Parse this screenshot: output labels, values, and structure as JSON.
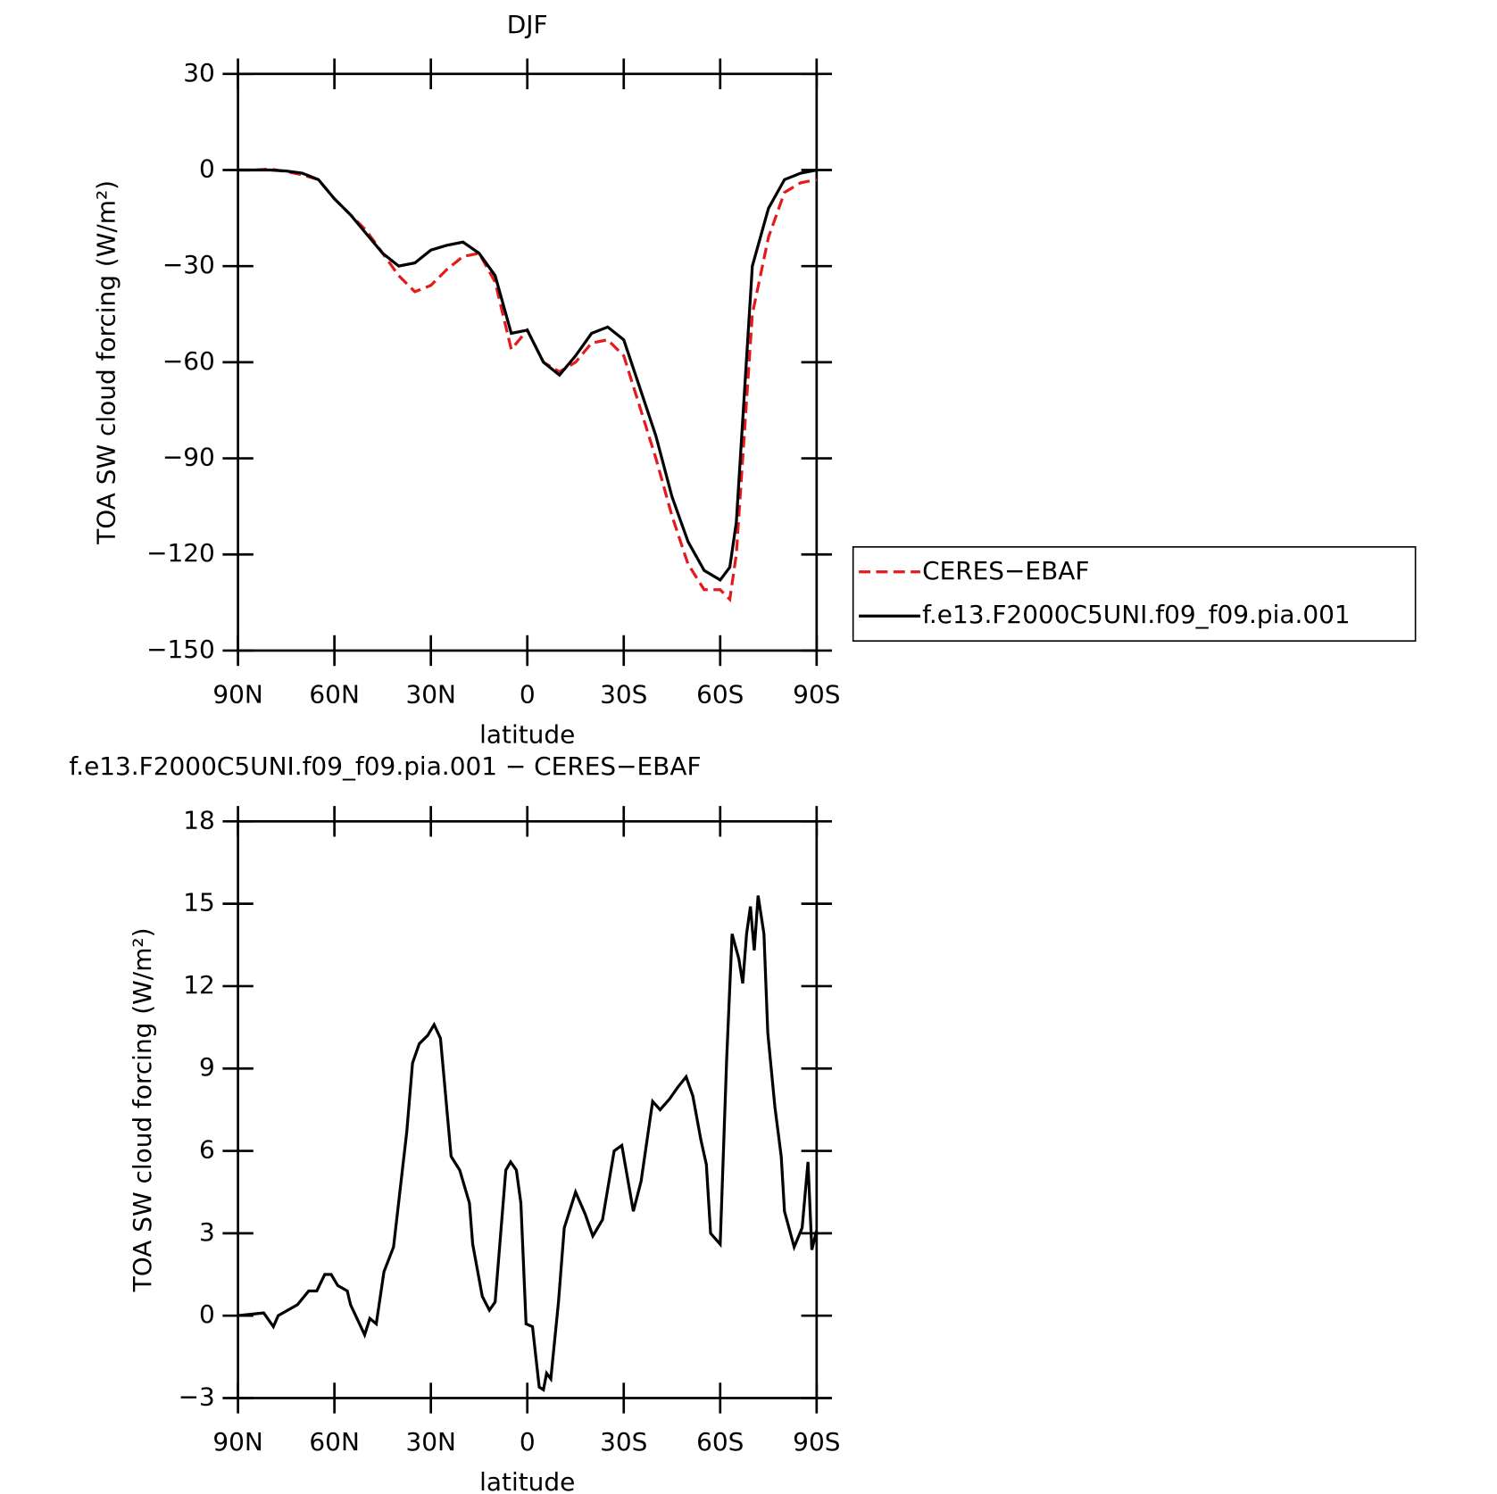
{
  "chart_data": [
    {
      "type": "line",
      "title": "DJF",
      "x_label": "latitude",
      "y_label": "TOA SW cloud forcing (W/m²)",
      "x": [
        90,
        85,
        80,
        75,
        70,
        65,
        60,
        55,
        50,
        45,
        40,
        35,
        30,
        25,
        20,
        15,
        10,
        5,
        0,
        -5,
        -10,
        -15,
        -20,
        -25,
        -30,
        -35,
        -40,
        -45,
        -50,
        -55,
        -60,
        -63,
        -65,
        -70,
        -75,
        -80,
        -85,
        -90
      ],
      "series": [
        {
          "name": "CERES−EBAF",
          "color": "#e41a1c",
          "dash": true,
          "values": [
            0,
            0,
            0.3,
            -0.5,
            -1.5,
            -3,
            -9,
            -14,
            -19,
            -26,
            -33,
            -38,
            -36,
            -31,
            -27,
            -26,
            -35,
            -56,
            -50,
            -60,
            -63,
            -60,
            -54,
            -53,
            -58,
            -74,
            -90,
            -108,
            -123,
            -131,
            -131,
            -134,
            -120,
            -45,
            -21,
            -7,
            -4,
            -3
          ]
        },
        {
          "name": "f.e13.F2000C5UNI.f09_f09.pia.001",
          "color": "#000000",
          "dash": false,
          "values": [
            0,
            0,
            0,
            -0.3,
            -1,
            -3,
            -9,
            -14,
            -20,
            -26,
            -30,
            -29,
            -25,
            -23.5,
            -22.5,
            -26,
            -33,
            -51,
            -50,
            -60,
            -64,
            -58,
            -51,
            -49,
            -53,
            -68,
            -83,
            -102,
            -116,
            -125,
            -128,
            -124,
            -110,
            -30,
            -12,
            -3,
            -1,
            0
          ]
        }
      ],
      "xlim": [
        90,
        -90
      ],
      "xticks": [
        {
          "value": 90,
          "label": "90N"
        },
        {
          "value": 60,
          "label": "60N"
        },
        {
          "value": 30,
          "label": "30N"
        },
        0,
        {
          "value": -30,
          "label": "30S"
        },
        {
          "value": -60,
          "label": "60S"
        },
        {
          "value": -90,
          "label": "90S"
        }
      ],
      "ylim": [
        -150,
        30
      ],
      "yticks": [
        {
          "value": -150,
          "label": "−150"
        },
        {
          "value": -120,
          "label": "−120"
        },
        {
          "value": -90,
          "label": "−90"
        },
        {
          "value": -60,
          "label": "−60"
        },
        {
          "value": -30,
          "label": "−30"
        },
        0,
        30
      ],
      "legend": "right"
    },
    {
      "type": "line",
      "title": "f.e13.F2000C5UNI.f09_f09.pia.001 − CERES−EBAF",
      "x_label": "latitude",
      "y_label": "TOA SW cloud forcing (W/m²)",
      "x": [
        90,
        82,
        79,
        77.5,
        71.5,
        68,
        65.5,
        63,
        61,
        59,
        56,
        55,
        50.6,
        49,
        47,
        44.6,
        41.6,
        37.5,
        35.7,
        33.6,
        31,
        29,
        27,
        23.7,
        21,
        18,
        17,
        14,
        11.8,
        10,
        6.7,
        5.2,
        3.4,
        2,
        0.4,
        -1.6,
        -3.7,
        -5,
        -6,
        -7.3,
        -9.7,
        -11.5,
        -15,
        -18,
        -20.4,
        -23.4,
        -27,
        -29.4,
        -33,
        -35.4,
        -39,
        -41.3,
        -44.3,
        -46.7,
        -49.4,
        -51.5,
        -54,
        -55.7,
        -57,
        -60,
        -62,
        -63.7,
        -65.8,
        -67,
        -68.2,
        -69.4,
        -70.6,
        -71.8,
        -73.6,
        -74.8,
        -77,
        -79,
        -80,
        -83,
        -85.5,
        -87.3,
        -88.5,
        -90
      ],
      "series": [
        {
          "color": "#000000",
          "dash": false,
          "values": [
            0,
            0.1,
            -0.4,
            0,
            0.4,
            0.9,
            0.9,
            1.5,
            1.5,
            1.1,
            0.9,
            0.4,
            -0.7,
            -0.1,
            -0.3,
            1.6,
            2.5,
            6.7,
            9.2,
            9.9,
            10.2,
            10.6,
            10.1,
            5.8,
            5.3,
            4.1,
            2.6,
            0.7,
            0.2,
            0.5,
            5.3,
            5.6,
            5.3,
            4.1,
            -0.3,
            -0.4,
            -2.6,
            -2.7,
            -2.1,
            -2.3,
            0.5,
            3.2,
            4.5,
            3.7,
            2.9,
            3.5,
            6.0,
            6.2,
            3.8,
            4.9,
            7.8,
            7.5,
            7.9,
            8.3,
            8.7,
            8.0,
            6.4,
            5.5,
            3.0,
            2.6,
            9.3,
            13.9,
            13.0,
            12.1,
            13.9,
            14.9,
            13.3,
            15.3,
            13.9,
            10.3,
            7.6,
            5.8,
            3.8,
            2.5,
            3.2,
            5.6,
            2.4,
            3.1
          ]
        }
      ],
      "xlim": [
        90,
        -90
      ],
      "xticks": [
        {
          "value": 90,
          "label": "90N"
        },
        {
          "value": 60,
          "label": "60N"
        },
        {
          "value": 30,
          "label": "30N"
        },
        0,
        {
          "value": -30,
          "label": "30S"
        },
        {
          "value": -60,
          "label": "60S"
        },
        {
          "value": -90,
          "label": "90S"
        }
      ],
      "ylim": [
        -3,
        18
      ],
      "yticks": [
        {
          "value": -3,
          "label": "−3"
        },
        0,
        3,
        6,
        9,
        12,
        15,
        18
      ]
    }
  ]
}
